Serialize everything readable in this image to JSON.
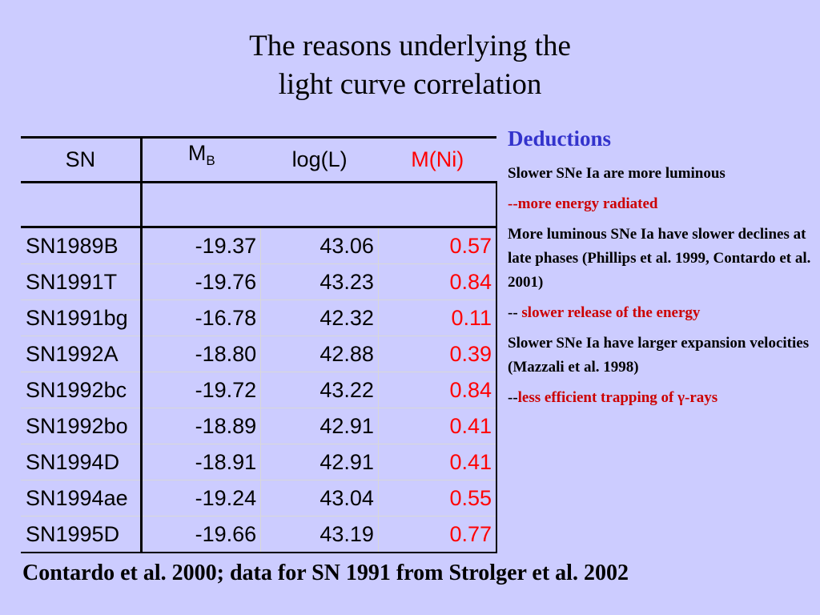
{
  "title": {
    "line1": "The reasons underlying the",
    "line2": "light curve correlation"
  },
  "table": {
    "headers": {
      "sn": "SN",
      "mb_main": "M",
      "mb_sub": "B",
      "logl": "log(L)",
      "mni": "M(Ni)"
    },
    "rows": [
      {
        "sn": "SN1989B",
        "mb": "-19.37",
        "logl": "43.06",
        "mni": "0.57"
      },
      {
        "sn": "SN1991T",
        "mb": "-19.76",
        "logl": "43.23",
        "mni": "0.84"
      },
      {
        "sn": "SN1991bg",
        "mb": "-16.78",
        "logl": "42.32",
        "mni": "0.11"
      },
      {
        "sn": "SN1992A",
        "mb": "-18.80",
        "logl": "42.88",
        "mni": "0.39"
      },
      {
        "sn": "SN1992bc",
        "mb": "-19.72",
        "logl": "43.22",
        "mni": "0.84"
      },
      {
        "sn": "SN1992bo",
        "mb": "-18.89",
        "logl": "42.91",
        "mni": "0.41"
      },
      {
        "sn": "SN1994D",
        "mb": "-18.91",
        "logl": "42.91",
        "mni": "0.41"
      },
      {
        "sn": "SN1994ae",
        "mb": "-19.24",
        "logl": "43.04",
        "mni": "0.55"
      },
      {
        "sn": "SN1995D",
        "mb": "-19.66",
        "logl": "43.19",
        "mni": "0.77"
      }
    ]
  },
  "deductions": {
    "heading": "Deductions",
    "p1": "Slower SNe Ia are more luminous",
    "p2": "--more energy radiated",
    "p3": "More luminous SNe Ia have slower declines at late phases (Phillips et al. 1999, Contardo et al. 2001)",
    "p4_prefix": "-- ",
    "p4_red": "slower release of the energy",
    "p5": "Slower SNe Ia have larger expansion velocities (Mazzali et al. 1998)",
    "p6_prefix": "--",
    "p6_red": "less efficient trapping of γ-rays"
  },
  "footer": "Contardo et al. 2000; data for SN 1991 from Strolger et al. 2002",
  "colors": {
    "background": "#ccccff",
    "heading_blue": "#3333cc",
    "red_text": "#cc0000",
    "table_red": "#ff0000"
  }
}
